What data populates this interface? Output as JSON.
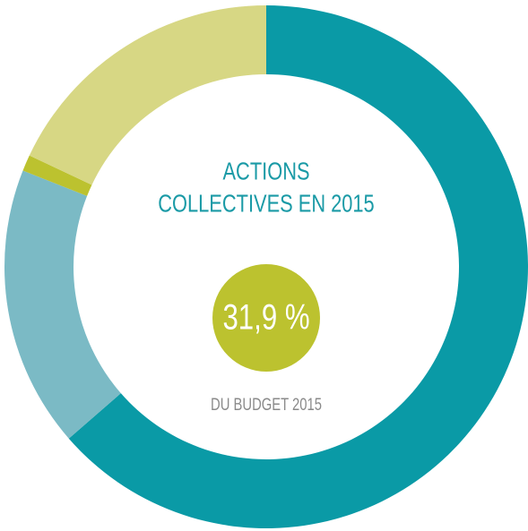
{
  "chart_data": {
    "type": "donut",
    "title": [
      "ACTIONS",
      "COLLECTIVES EN 2015"
    ],
    "highlight": "31,9 %",
    "subtitle": "DU BUDGET 2015",
    "categories": [
      null,
      null,
      null,
      null
    ],
    "values": [
      63.6,
      17.4,
      1,
      18
    ],
    "colors": [
      "#0a9aa6",
      "#7bbac5",
      "#bcc22f",
      "#d7d784"
    ],
    "highlight_color": "#bcc22f",
    "text_color": "#1a9aa6",
    "subtitle_color": "#8a8a8a"
  }
}
